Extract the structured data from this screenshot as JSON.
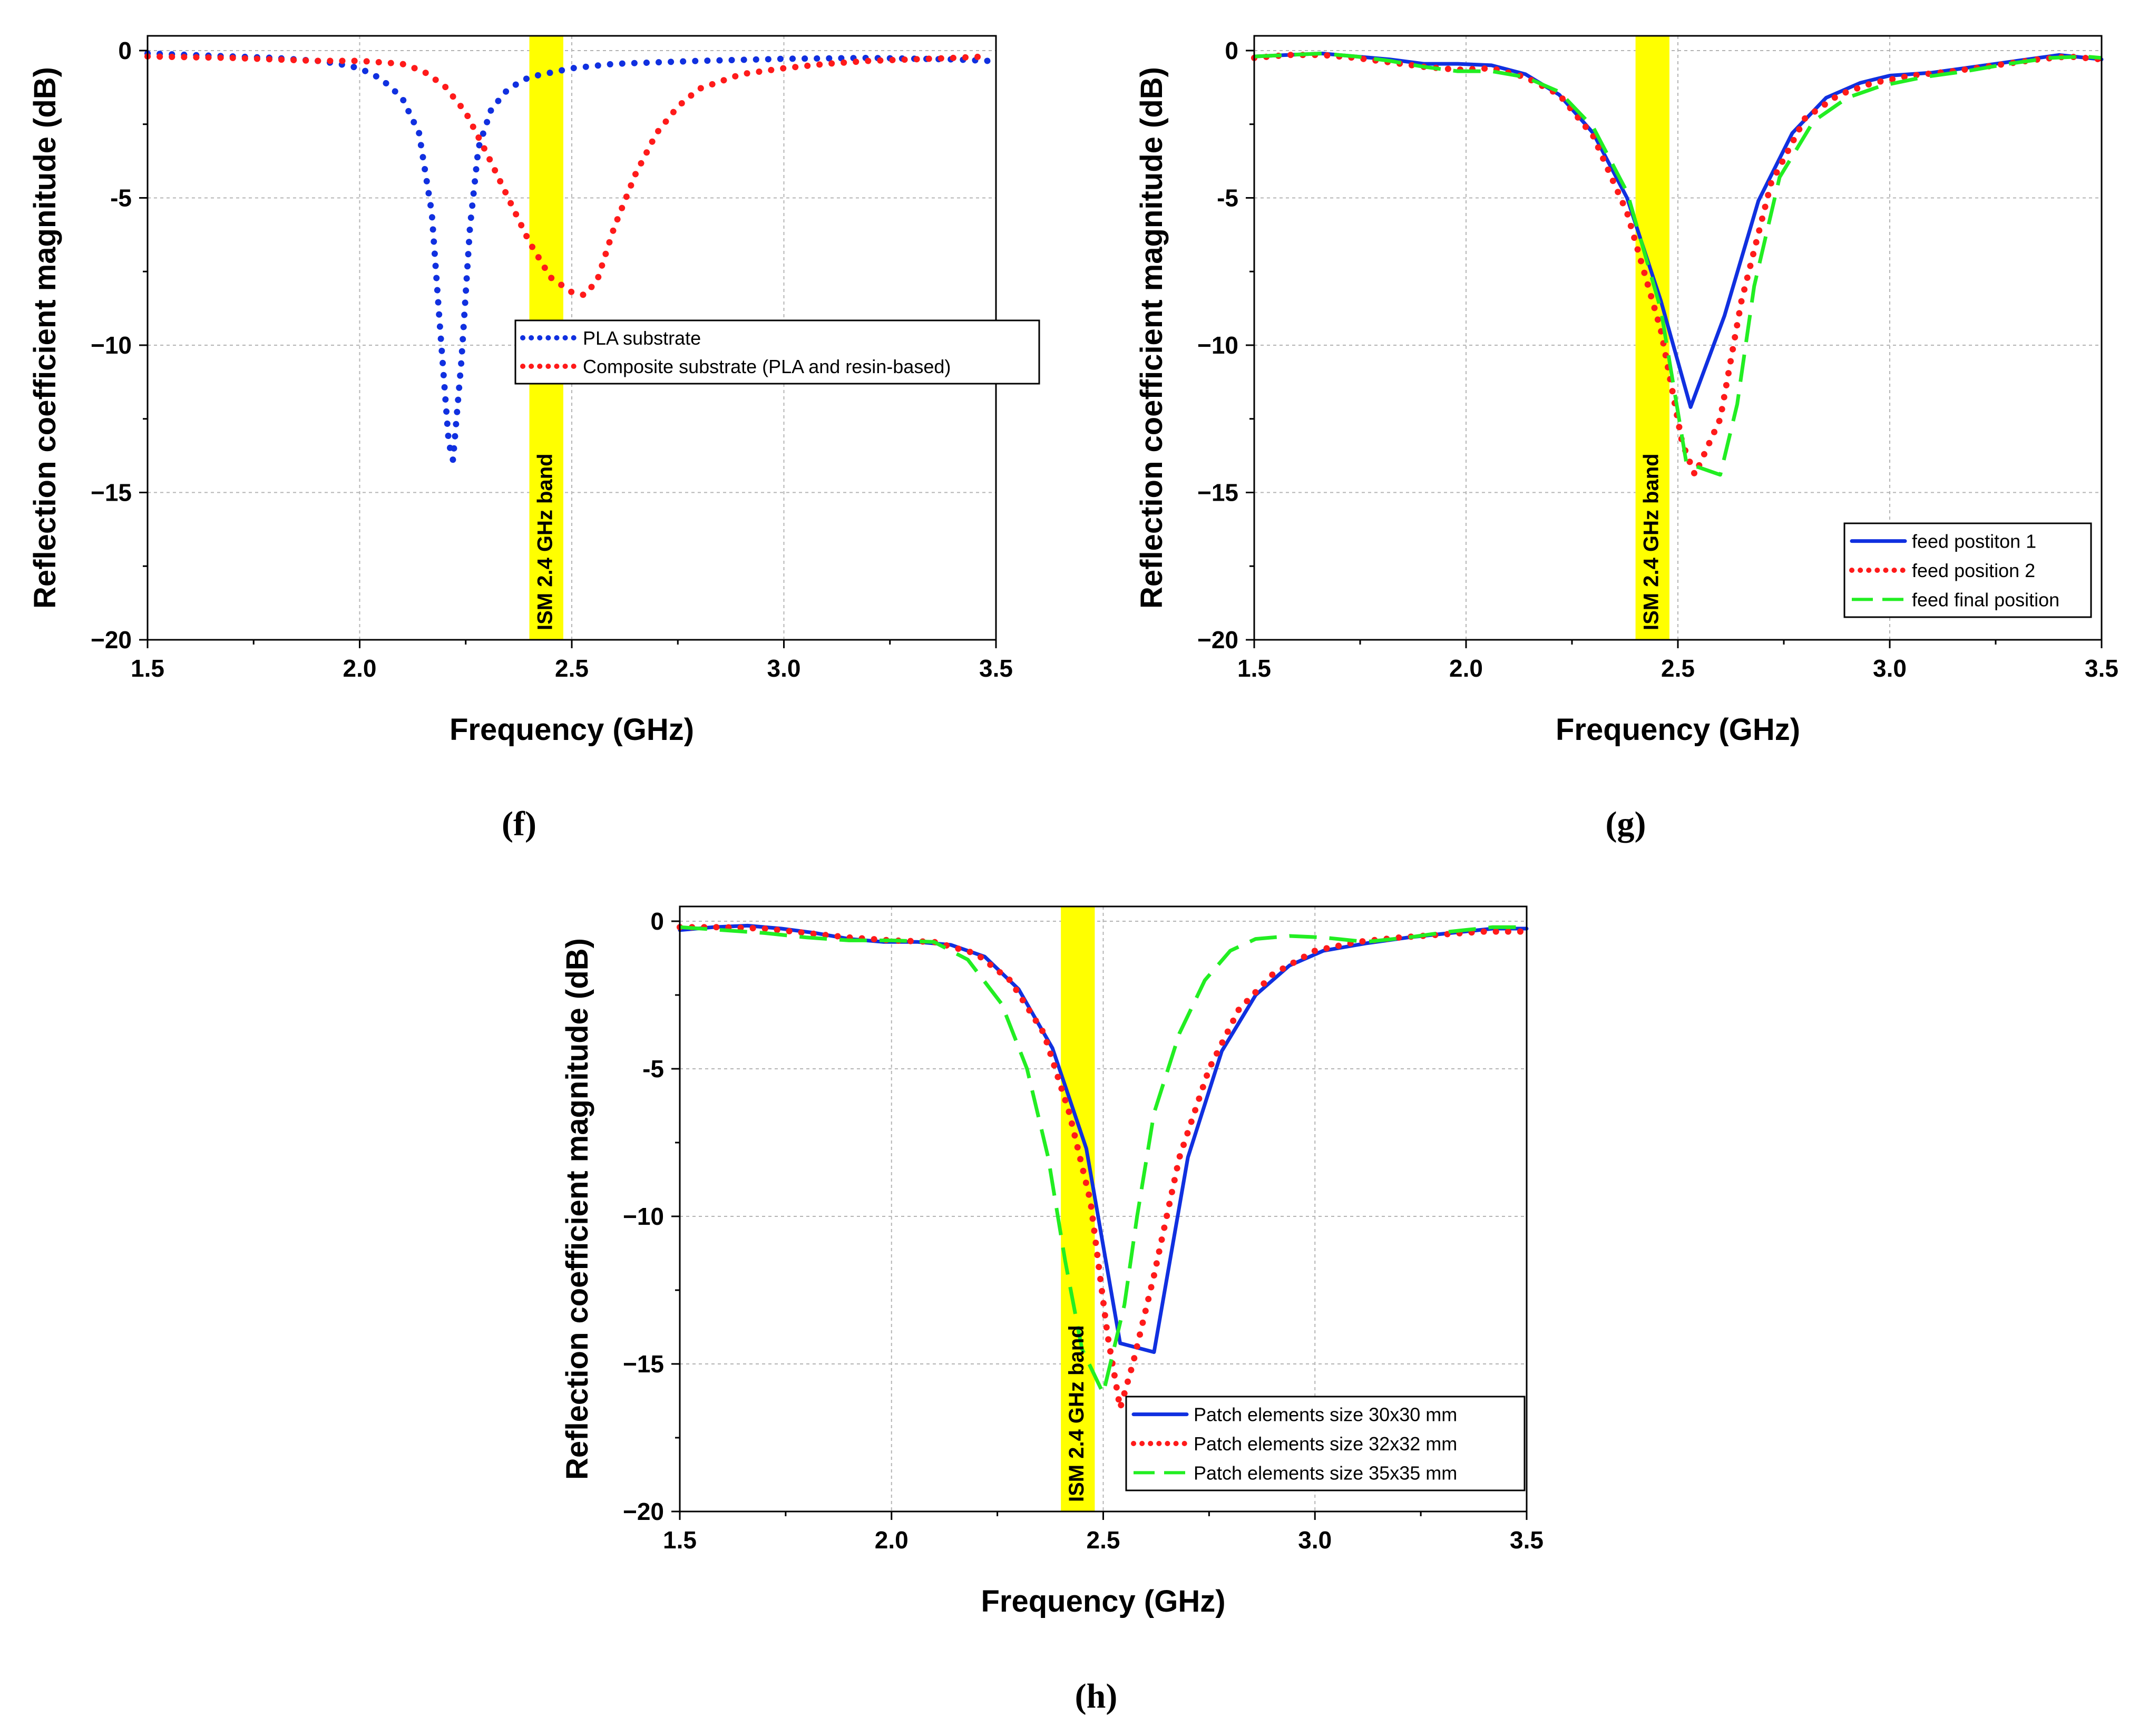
{
  "colors": {
    "blue": "#1030e0",
    "red": "#ff1a1a",
    "green": "#22ee22",
    "band": "#ffff00",
    "grid": "#b4b4b4"
  },
  "chart_data": [
    {
      "id": "f",
      "type": "line",
      "panel_label": "(f)",
      "xlabel": "Frequency (GHz)",
      "ylabel": "Reflection coefficient magnitude (dB)",
      "xlim": [
        1.5,
        3.5
      ],
      "ylim": [
        -20,
        0.5
      ],
      "xticks": [
        1.5,
        2.0,
        2.5,
        3.0,
        3.5
      ],
      "xtick_labels": [
        "1.5",
        "2.0",
        "2.5",
        "3.0",
        "3.5"
      ],
      "yticks": [
        0,
        -5,
        -10,
        -15,
        -20
      ],
      "ytick_labels": [
        "0",
        "-5",
        "−10",
        "−15",
        "−20"
      ],
      "grid": true,
      "band": {
        "x0": 2.4,
        "x1": 2.48,
        "label": "ISM 2.4 GHz band"
      },
      "legend": {
        "placement": "middle-right"
      },
      "series": [
        {
          "name": "PLA substrate",
          "style": "dotted",
          "color": "blue",
          "x": [
            1.5,
            1.6,
            1.7,
            1.8,
            1.9,
            1.95,
            2.0,
            2.05,
            2.1,
            2.14,
            2.17,
            2.19,
            2.21,
            2.22,
            2.24,
            2.26,
            2.28,
            2.31,
            2.35,
            2.4,
            2.5,
            2.6,
            2.8,
            3.0,
            3.2,
            3.4,
            3.48
          ],
          "y": [
            -0.1,
            -0.15,
            -0.2,
            -0.25,
            -0.35,
            -0.45,
            -0.6,
            -0.95,
            -1.6,
            -2.8,
            -5.5,
            -9.5,
            -13.3,
            -13.9,
            -10.5,
            -6.0,
            -3.3,
            -2.0,
            -1.3,
            -0.9,
            -0.6,
            -0.45,
            -0.35,
            -0.28,
            -0.25,
            -0.3,
            -0.35
          ]
        },
        {
          "name": "Composite substrate (PLA and resin-based)",
          "style": "dotted",
          "color": "red",
          "x": [
            1.5,
            1.7,
            1.9,
            2.0,
            2.1,
            2.15,
            2.2,
            2.25,
            2.3,
            2.35,
            2.4,
            2.45,
            2.5,
            2.53,
            2.56,
            2.6,
            2.65,
            2.7,
            2.75,
            2.8,
            2.9,
            3.0,
            3.1,
            3.2,
            3.3,
            3.4,
            3.48
          ],
          "y": [
            -0.2,
            -0.25,
            -0.35,
            -0.35,
            -0.45,
            -0.7,
            -1.2,
            -2.1,
            -3.5,
            -5.0,
            -6.5,
            -7.7,
            -8.2,
            -8.3,
            -7.8,
            -6.0,
            -4.2,
            -2.8,
            -1.9,
            -1.3,
            -0.8,
            -0.6,
            -0.45,
            -0.35,
            -0.3,
            -0.25,
            -0.2
          ]
        }
      ]
    },
    {
      "id": "g",
      "type": "line",
      "panel_label": "(g)",
      "xlabel": "Frequency (GHz)",
      "ylabel": "Reflection coefficient magnitude (dB)",
      "xlim": [
        1.5,
        3.5
      ],
      "ylim": [
        -20,
        0.5
      ],
      "xticks": [
        1.5,
        2.0,
        2.5,
        3.0,
        3.5
      ],
      "xtick_labels": [
        "1.5",
        "2.0",
        "2.5",
        "3.0",
        "3.5"
      ],
      "yticks": [
        0,
        -5,
        -10,
        -15,
        -20
      ],
      "ytick_labels": [
        "0",
        "-5",
        "−10",
        "−15",
        "−20"
      ],
      "grid": true,
      "band": {
        "x0": 2.4,
        "x1": 2.48,
        "label": "ISM 2.4 GHz band"
      },
      "legend": {
        "placement": "bottom-right"
      },
      "series": [
        {
          "name": "feed postiton 1",
          "style": "solid",
          "color": "blue",
          "x": [
            1.5,
            1.58,
            1.66,
            1.74,
            1.82,
            1.9,
            1.98,
            2.06,
            2.14,
            2.22,
            2.3,
            2.38,
            2.46,
            2.53,
            2.61,
            2.69,
            2.77,
            2.85,
            2.93,
            3.0,
            3.1,
            3.2,
            3.3,
            3.4,
            3.5
          ],
          "y": [
            -0.2,
            -0.15,
            -0.1,
            -0.2,
            -0.3,
            -0.45,
            -0.45,
            -0.5,
            -0.8,
            -1.5,
            -2.8,
            -5.0,
            -8.5,
            -12.1,
            -9.0,
            -5.1,
            -2.8,
            -1.6,
            -1.1,
            -0.85,
            -0.75,
            -0.55,
            -0.35,
            -0.15,
            -0.3
          ]
        },
        {
          "name": "feed position 2",
          "style": "dotted",
          "color": "red",
          "x": [
            1.5,
            1.58,
            1.66,
            1.74,
            1.82,
            1.9,
            1.98,
            2.06,
            2.14,
            2.22,
            2.3,
            2.38,
            2.46,
            2.51,
            2.54,
            2.6,
            2.65,
            2.72,
            2.8,
            2.88,
            2.96,
            3.05,
            3.15,
            3.25,
            3.35,
            3.42,
            3.5
          ],
          "y": [
            -0.25,
            -0.15,
            -0.15,
            -0.25,
            -0.4,
            -0.55,
            -0.65,
            -0.6,
            -0.9,
            -1.5,
            -2.9,
            -5.5,
            -9.5,
            -13.3,
            -14.4,
            -12.5,
            -8.5,
            -4.5,
            -2.3,
            -1.5,
            -1.1,
            -0.85,
            -0.7,
            -0.5,
            -0.3,
            -0.2,
            -0.3
          ]
        },
        {
          "name": "feed final position",
          "style": "dashed",
          "color": "green",
          "x": [
            1.5,
            1.58,
            1.66,
            1.74,
            1.82,
            1.9,
            1.98,
            2.06,
            2.14,
            2.22,
            2.3,
            2.38,
            2.46,
            2.52,
            2.6,
            2.64,
            2.68,
            2.74,
            2.82,
            2.9,
            2.98,
            3.08,
            3.18,
            3.28,
            3.38,
            3.46,
            3.5
          ],
          "y": [
            -0.2,
            -0.15,
            -0.1,
            -0.2,
            -0.35,
            -0.55,
            -0.7,
            -0.7,
            -0.9,
            -1.4,
            -2.6,
            -4.8,
            -8.8,
            -14.0,
            -14.4,
            -12.0,
            -8.0,
            -4.3,
            -2.4,
            -1.6,
            -1.2,
            -0.9,
            -0.7,
            -0.45,
            -0.25,
            -0.2,
            -0.25
          ]
        }
      ]
    },
    {
      "id": "h",
      "type": "line",
      "panel_label": "(h)",
      "xlabel": "Frequency (GHz)",
      "ylabel": "Reflection coefficient magnitude (dB)",
      "xlim": [
        1.5,
        3.5
      ],
      "ylim": [
        -20,
        0.5
      ],
      "xticks": [
        1.5,
        2.0,
        2.5,
        3.0,
        3.5
      ],
      "xtick_labels": [
        "1.5",
        "2.0",
        "2.5",
        "3.0",
        "3.5"
      ],
      "yticks": [
        0,
        -5,
        -10,
        -15,
        -20
      ],
      "ytick_labels": [
        "0",
        "-5",
        "−10",
        "−15",
        "−20"
      ],
      "grid": true,
      "band": {
        "x0": 2.4,
        "x1": 2.48,
        "label": "ISM 2.4 GHz band"
      },
      "legend": {
        "placement": "bottom-right"
      },
      "series": [
        {
          "name": "Patch elements size 30x30 mm",
          "style": "solid",
          "color": "blue",
          "x": [
            1.5,
            1.58,
            1.66,
            1.74,
            1.82,
            1.9,
            1.98,
            2.06,
            2.14,
            2.22,
            2.3,
            2.38,
            2.46,
            2.54,
            2.62,
            2.7,
            2.78,
            2.86,
            2.94,
            3.02,
            3.12,
            3.22,
            3.32,
            3.42,
            3.5
          ],
          "y": [
            -0.3,
            -0.2,
            -0.15,
            -0.25,
            -0.4,
            -0.6,
            -0.7,
            -0.7,
            -0.8,
            -1.2,
            -2.3,
            -4.3,
            -7.7,
            -14.3,
            -14.6,
            -8.0,
            -4.4,
            -2.5,
            -1.5,
            -1.0,
            -0.75,
            -0.55,
            -0.4,
            -0.25,
            -0.25
          ]
        },
        {
          "name": "Patch elements size 32x32 mm",
          "style": "dotted",
          "color": "red",
          "x": [
            1.5,
            1.6,
            1.7,
            1.8,
            1.9,
            2.0,
            2.1,
            2.2,
            2.28,
            2.36,
            2.42,
            2.47,
            2.51,
            2.54,
            2.57,
            2.62,
            2.68,
            2.75,
            2.82,
            2.9,
            3.0,
            3.1,
            3.2,
            3.3,
            3.4,
            3.5
          ],
          "y": [
            -0.2,
            -0.2,
            -0.25,
            -0.4,
            -0.55,
            -0.65,
            -0.7,
            -1.1,
            -2.0,
            -3.8,
            -6.5,
            -9.5,
            -14.0,
            -16.5,
            -15.0,
            -12.0,
            -8.0,
            -5.0,
            -3.0,
            -1.8,
            -1.0,
            -0.7,
            -0.55,
            -0.45,
            -0.35,
            -0.35
          ]
        },
        {
          "name": "Patch elements size 35x35 mm",
          "style": "dashed",
          "color": "green",
          "x": [
            1.5,
            1.6,
            1.7,
            1.8,
            1.9,
            2.0,
            2.1,
            2.18,
            2.26,
            2.32,
            2.37,
            2.41,
            2.45,
            2.5,
            2.55,
            2.58,
            2.62,
            2.68,
            2.74,
            2.8,
            2.86,
            2.94,
            3.02,
            3.12,
            3.22,
            3.32,
            3.42,
            3.5
          ],
          "y": [
            -0.2,
            -0.3,
            -0.4,
            -0.55,
            -0.65,
            -0.65,
            -0.7,
            -1.3,
            -2.8,
            -5.0,
            -8.0,
            -11.5,
            -14.5,
            -16.0,
            -13.0,
            -10.0,
            -6.5,
            -3.8,
            -2.0,
            -1.0,
            -0.6,
            -0.5,
            -0.55,
            -0.7,
            -0.55,
            -0.35,
            -0.2,
            -0.2
          ]
        }
      ]
    }
  ]
}
